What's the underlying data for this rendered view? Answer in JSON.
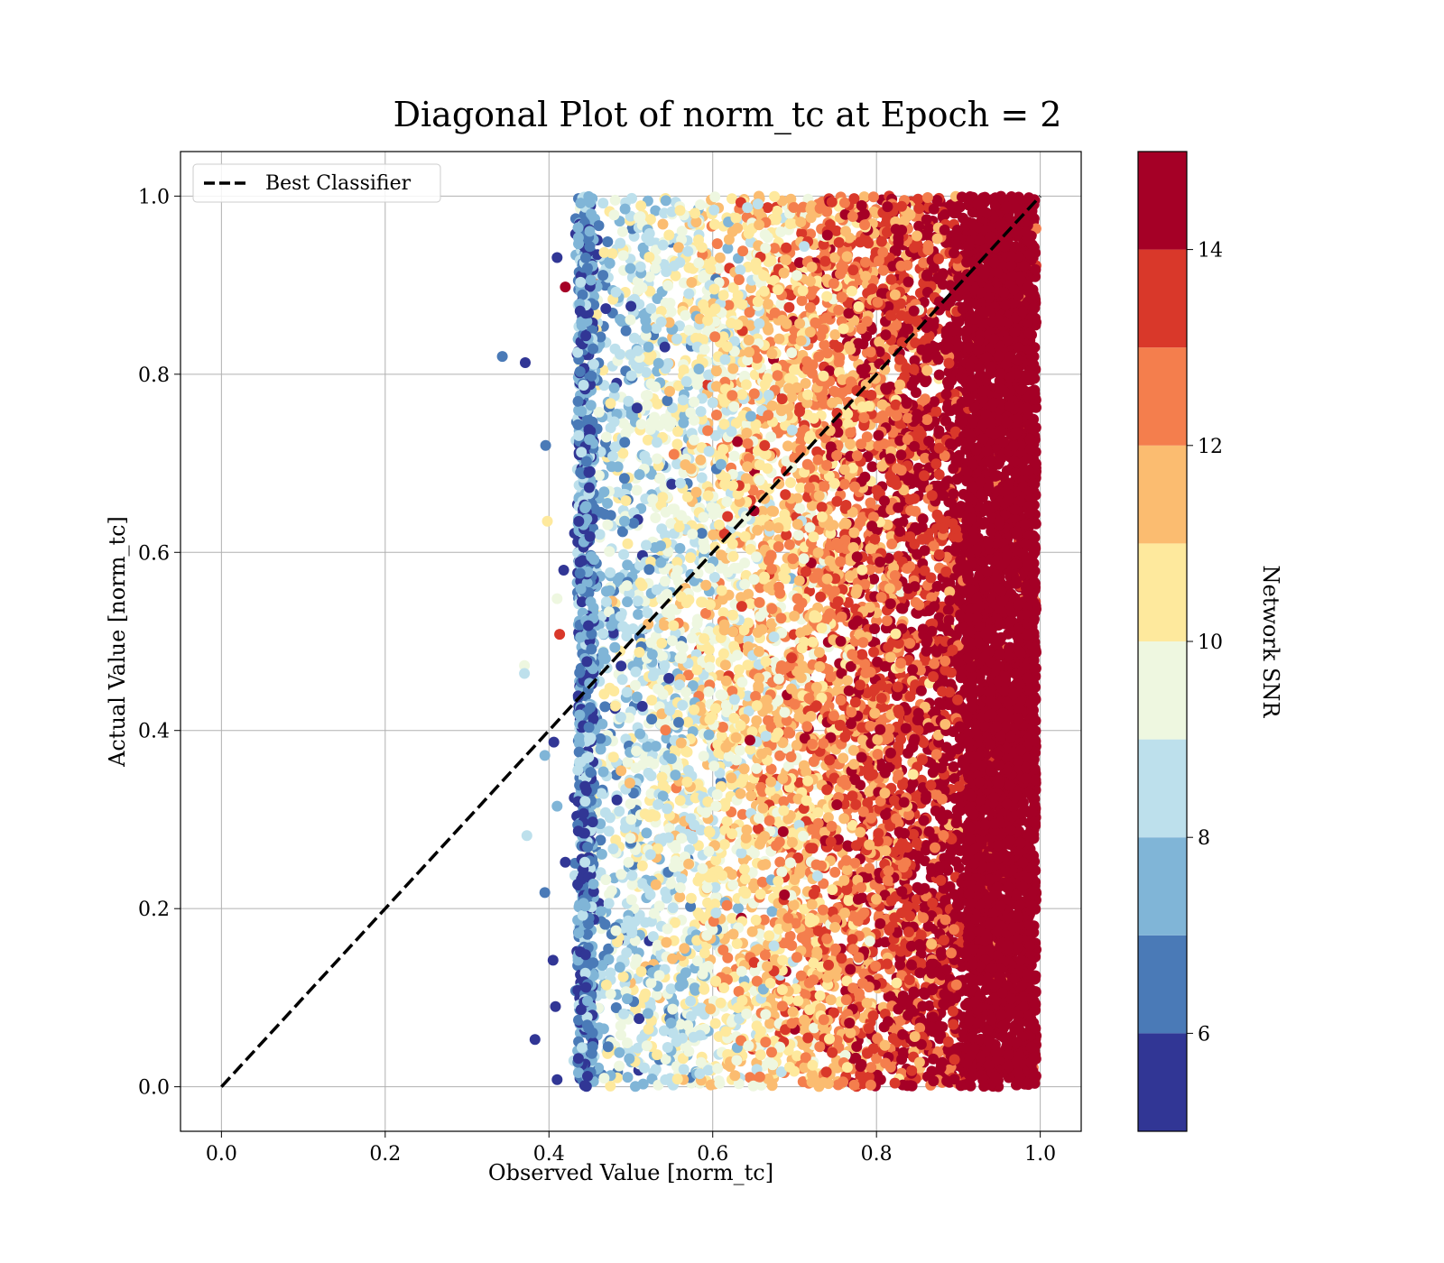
{
  "chart_data": {
    "type": "scatter",
    "title": "Diagonal Plot of norm_tc at Epoch = 2",
    "xlabel": "Observed Value [norm_tc]",
    "ylabel": "Actual Value [norm_tc]",
    "xlim": [
      -0.05,
      1.05
    ],
    "ylim": [
      -0.05,
      1.05
    ],
    "xticks": [
      "0.0",
      "0.2",
      "0.4",
      "0.6",
      "0.8",
      "1.0"
    ],
    "yticks": [
      "0.0",
      "0.2",
      "0.4",
      "0.6",
      "0.8",
      "1.0"
    ],
    "grid": true,
    "legend": {
      "placement": "top-left",
      "entries": [
        {
          "label": "Best Classifier",
          "style": "dashed",
          "color": "#000000"
        }
      ]
    },
    "reference_line": {
      "name": "Best Classifier",
      "x": [
        0,
        1
      ],
      "y": [
        0,
        1
      ]
    },
    "colorbar": {
      "label": "Network SNR",
      "range": [
        5,
        15
      ],
      "ticks": [
        "6",
        "8",
        "10",
        "12",
        "14"
      ],
      "tick_values": [
        6,
        8,
        10,
        12,
        14
      ],
      "bands": [
        {
          "from": 5,
          "to": 6,
          "color": "#313695"
        },
        {
          "from": 6,
          "to": 7,
          "color": "#4a7ab7"
        },
        {
          "from": 7,
          "to": 8,
          "color": "#80b5d7"
        },
        {
          "from": 8,
          "to": 9,
          "color": "#bde0ec"
        },
        {
          "from": 9,
          "to": 10,
          "color": "#eef7e0"
        },
        {
          "from": 10,
          "to": 11,
          "color": "#fee99d"
        },
        {
          "from": 11,
          "to": 12,
          "color": "#fbbc70"
        },
        {
          "from": 12,
          "to": 13,
          "color": "#f47e4d"
        },
        {
          "from": 13,
          "to": 14,
          "color": "#d9382a"
        },
        {
          "from": 14,
          "to": 15,
          "color": "#a50026"
        }
      ]
    },
    "point_cloud": {
      "description_x_range": [
        0.43,
        1.0
      ],
      "description_y_range": [
        0.0,
        1.0
      ],
      "trend": "SNR increases with observed value; points at x>0.9 mostly SNR>14"
    },
    "outliers": [
      {
        "x": 0.343,
        "y": 0.82,
        "snr": 6.5
      },
      {
        "x": 0.371,
        "y": 0.813,
        "snr": 5.5
      },
      {
        "x": 0.396,
        "y": 0.72,
        "snr": 6
      },
      {
        "x": 0.398,
        "y": 0.635,
        "snr": 10.5
      },
      {
        "x": 0.37,
        "y": 0.473,
        "snr": 9.5
      },
      {
        "x": 0.37,
        "y": 0.464,
        "snr": 8.5
      },
      {
        "x": 0.41,
        "y": 0.548,
        "snr": 9.5
      },
      {
        "x": 0.413,
        "y": 0.508,
        "snr": 13.5
      },
      {
        "x": 0.395,
        "y": 0.372,
        "snr": 7.5
      },
      {
        "x": 0.373,
        "y": 0.282,
        "snr": 8.5
      },
      {
        "x": 0.395,
        "y": 0.218,
        "snr": 6.5
      },
      {
        "x": 0.383,
        "y": 0.053,
        "snr": 5.5
      },
      {
        "x": 0.41,
        "y": 0.008,
        "snr": 5.5
      },
      {
        "x": 0.405,
        "y": 0.142,
        "snr": 5.5
      },
      {
        "x": 0.408,
        "y": 0.09,
        "snr": 5.5
      },
      {
        "x": 0.406,
        "y": 0.387,
        "snr": 5.5
      },
      {
        "x": 0.41,
        "y": 0.315,
        "snr": 7.5
      },
      {
        "x": 0.41,
        "y": 0.931,
        "snr": 5.5
      },
      {
        "x": 0.42,
        "y": 0.898,
        "snr": 14.5
      },
      {
        "x": 0.418,
        "y": 0.58,
        "snr": 5.5
      },
      {
        "x": 0.42,
        "y": 0.252,
        "snr": 5.5
      }
    ]
  }
}
